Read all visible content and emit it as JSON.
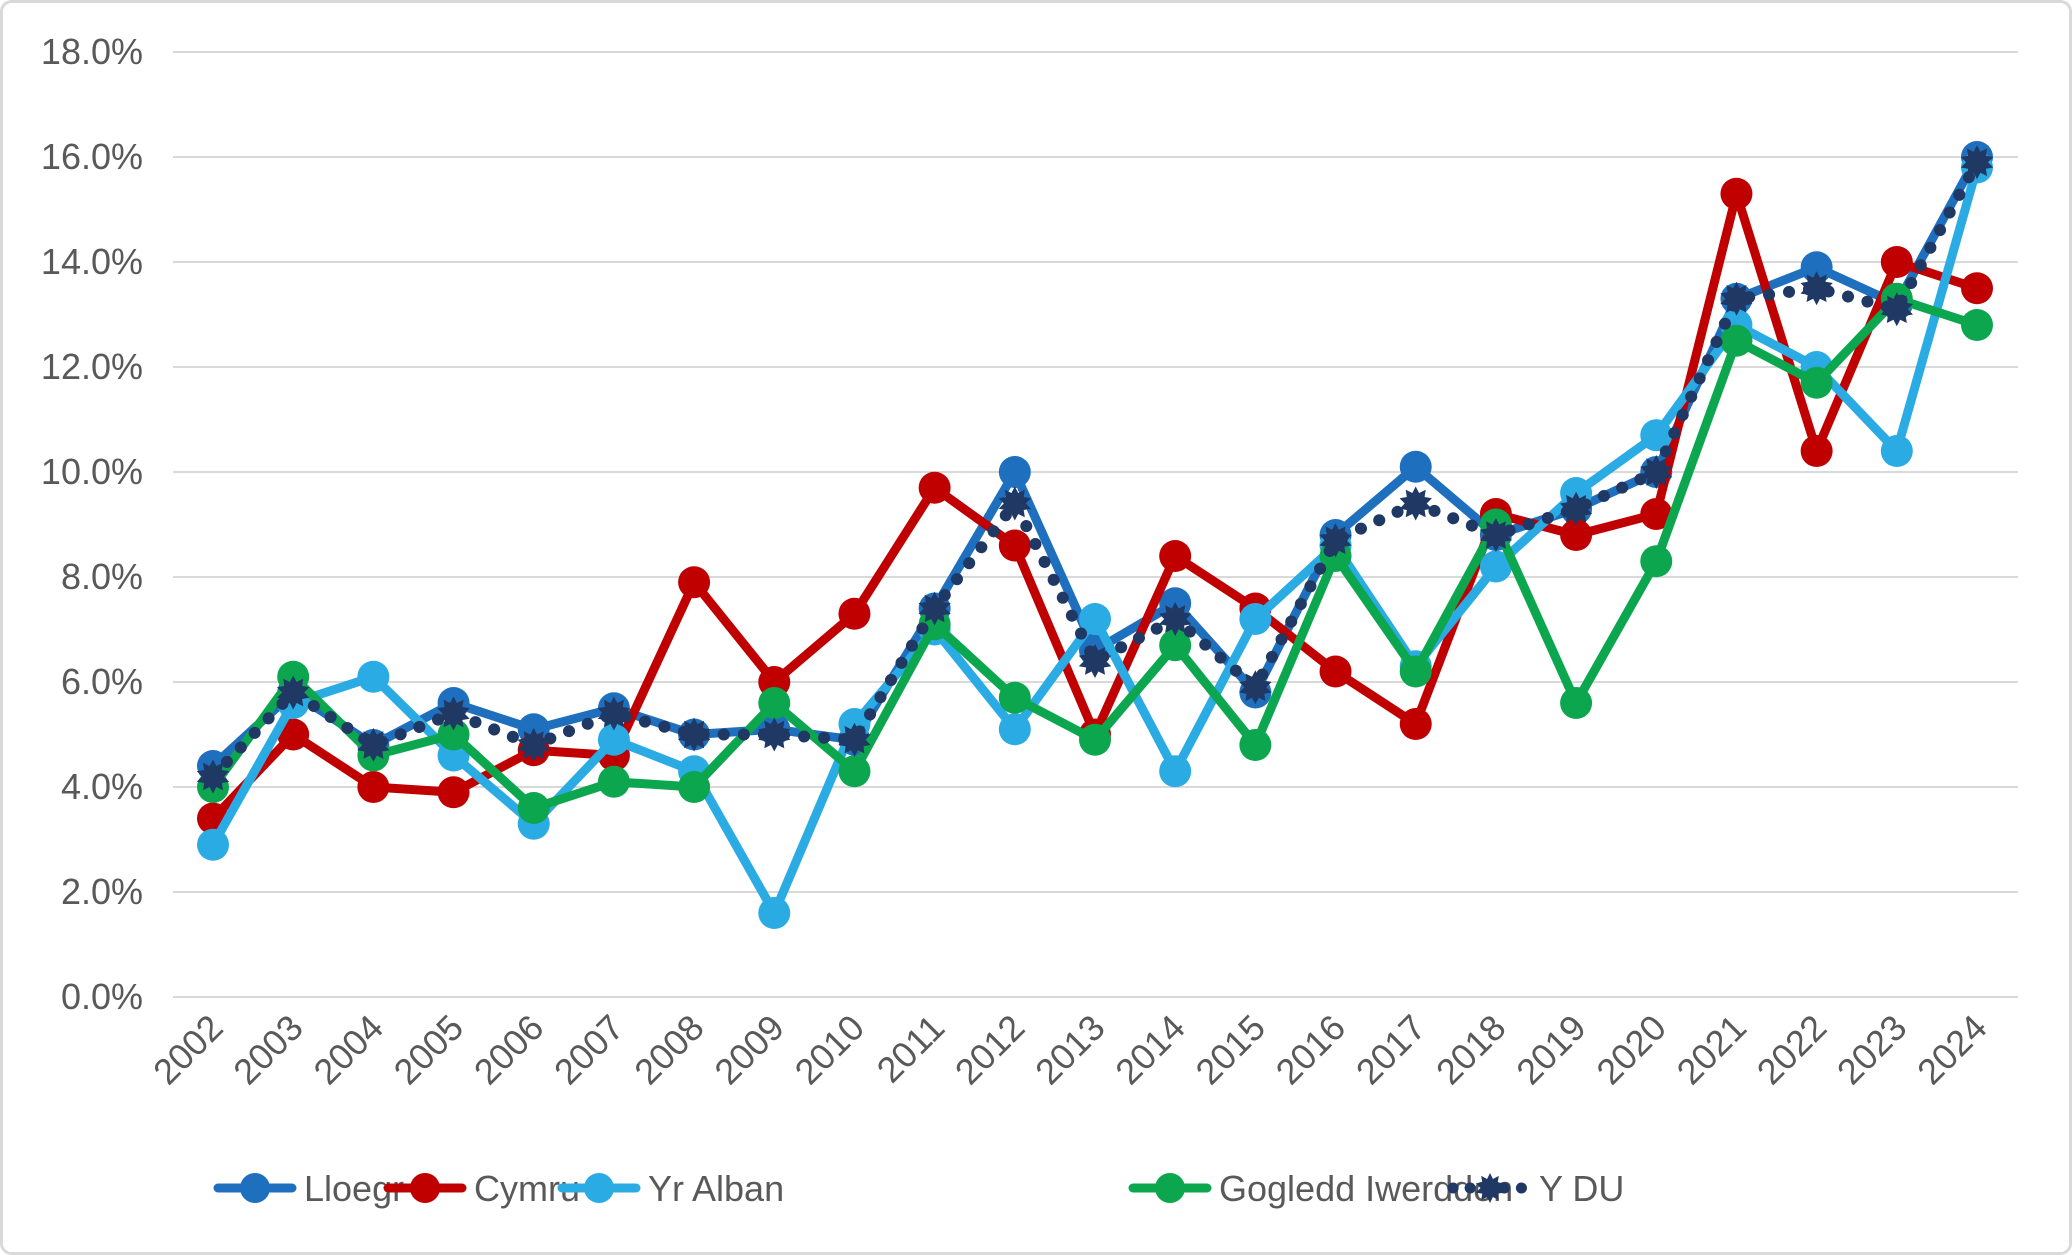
{
  "chart_data": {
    "type": "line",
    "title": "",
    "x": [
      "2002",
      "2003",
      "2004",
      "2005",
      "2006",
      "2007",
      "2008",
      "2009",
      "2010",
      "2011",
      "2012",
      "2013",
      "2014",
      "2015",
      "2016",
      "2017",
      "2018",
      "2019",
      "2020",
      "2021",
      "2022",
      "2023",
      "2024"
    ],
    "y_axis": {
      "min": 0,
      "max": 18,
      "step": 2,
      "format": "percent",
      "tick_labels": [
        "0.0%",
        "2.0%",
        "4.0%",
        "6.0%",
        "8.0%",
        "10.0%",
        "12.0%",
        "14.0%",
        "16.0%",
        "18.0%"
      ]
    },
    "grid": true,
    "legend_position": "bottom",
    "series": [
      {
        "name": "Lloegr",
        "color": "#1f6fbf",
        "line": "solid",
        "marker": "circle",
        "values": [
          4.4,
          5.8,
          4.8,
          5.6,
          5.1,
          5.5,
          5.0,
          5.1,
          4.9,
          7.4,
          10.0,
          6.6,
          7.5,
          5.8,
          8.8,
          10.1,
          8.8,
          9.3,
          10.0,
          13.3,
          13.9,
          13.2,
          16.0
        ]
      },
      {
        "name": "Cymru",
        "color": "#c00000",
        "line": "solid",
        "marker": "circle",
        "values": [
          3.4,
          5.0,
          4.0,
          3.9,
          4.7,
          4.6,
          7.9,
          6.0,
          7.3,
          9.7,
          8.6,
          5.0,
          8.4,
          7.4,
          6.2,
          5.2,
          9.2,
          8.8,
          9.2,
          15.3,
          10.4,
          14.0,
          13.5
        ]
      },
      {
        "name": "Yr Alban",
        "color": "#2aabe3",
        "line": "solid",
        "marker": "circle",
        "values": [
          2.9,
          5.6,
          6.1,
          4.6,
          3.3,
          4.9,
          4.3,
          1.6,
          5.2,
          7.0,
          5.1,
          7.2,
          4.3,
          7.2,
          8.6,
          6.3,
          8.2,
          9.6,
          10.7,
          12.8,
          12.0,
          10.4,
          15.8
        ]
      },
      {
        "name": "Gogledd Iwerddon",
        "color": "#0ca64f",
        "line": "solid",
        "marker": "circle",
        "values": [
          4.0,
          6.1,
          4.6,
          5.0,
          3.6,
          4.1,
          4.0,
          5.6,
          4.3,
          7.1,
          5.7,
          4.9,
          6.7,
          4.8,
          8.4,
          6.2,
          9.0,
          5.6,
          8.3,
          12.5,
          11.7,
          13.3,
          12.8
        ]
      },
      {
        "name": "Y DU",
        "color": "#1f3864",
        "line": "dotted",
        "marker": "star",
        "values": [
          4.2,
          5.8,
          4.8,
          5.4,
          4.8,
          5.4,
          5.0,
          5.0,
          4.9,
          7.4,
          9.4,
          6.4,
          7.2,
          5.9,
          8.7,
          9.4,
          8.8,
          9.3,
          10.0,
          13.3,
          13.5,
          13.1,
          15.9
        ]
      }
    ]
  },
  "colors": {
    "background": "#ffffff",
    "border": "#d9d9d9",
    "gridline": "#d9d9d9",
    "axis_text": "#595959",
    "legend_text": "#595959"
  }
}
